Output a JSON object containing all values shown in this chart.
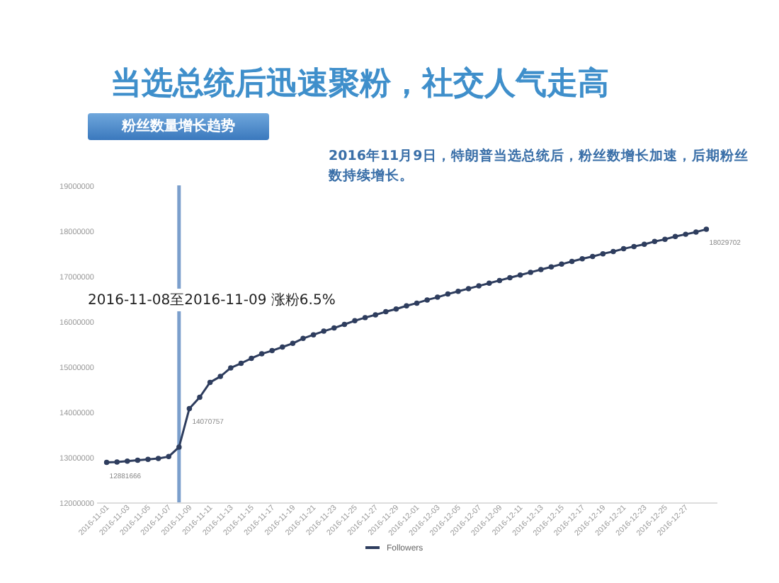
{
  "chart_data": {
    "type": "line",
    "title": "当选总统后迅速聚粉，社交人气走高",
    "subtitle": "粉丝数量增长趋势",
    "annotations": [
      "2016-11-08至2016-11-09 涨粉6.5%",
      "2016年11月9日，特朗普当选总统后，粉丝数增长加速，后期粉丝数持续增长。"
    ],
    "x": [
      "2016-11-01",
      "2016-11-02",
      "2016-11-03",
      "2016-11-04",
      "2016-11-05",
      "2016-11-06",
      "2016-11-07",
      "2016-11-08",
      "2016-11-09",
      "2016-11-10",
      "2016-11-11",
      "2016-11-12",
      "2016-11-13",
      "2016-11-14",
      "2016-11-15",
      "2016-11-16",
      "2016-11-17",
      "2016-11-18",
      "2016-11-19",
      "2016-11-20",
      "2016-11-21",
      "2016-11-22",
      "2016-11-23",
      "2016-11-24",
      "2016-11-25",
      "2016-11-26",
      "2016-11-27",
      "2016-11-28",
      "2016-11-29",
      "2016-11-30",
      "2016-12-01",
      "2016-12-02",
      "2016-12-03",
      "2016-12-04",
      "2016-12-05",
      "2016-12-06",
      "2016-12-07",
      "2016-12-08",
      "2016-12-09",
      "2016-12-10",
      "2016-12-11",
      "2016-12-12",
      "2016-12-13",
      "2016-12-14",
      "2016-12-15",
      "2016-12-16",
      "2016-12-17",
      "2016-12-18",
      "2016-12-19",
      "2016-12-20",
      "2016-12-21",
      "2016-12-22",
      "2016-12-23",
      "2016-12-24",
      "2016-12-25",
      "2016-12-26",
      "2016-12-27",
      "2016-12-28",
      "2016-12-29"
    ],
    "series": [
      {
        "name": "Followers",
        "color": "#2e3d5e",
        "values": [
          12881666,
          12890000,
          12910000,
          12930000,
          12950000,
          12970000,
          13010000,
          13220000,
          14070757,
          14320000,
          14650000,
          14780000,
          14970000,
          15070000,
          15180000,
          15280000,
          15350000,
          15430000,
          15510000,
          15620000,
          15700000,
          15780000,
          15850000,
          15930000,
          16010000,
          16080000,
          16140000,
          16210000,
          16270000,
          16340000,
          16400000,
          16470000,
          16530000,
          16600000,
          16660000,
          16720000,
          16780000,
          16840000,
          16900000,
          16960000,
          17020000,
          17080000,
          17140000,
          17200000,
          17260000,
          17320000,
          17380000,
          17430000,
          17490000,
          17540000,
          17600000,
          17650000,
          17700000,
          17760000,
          17810000,
          17870000,
          17920000,
          17970000,
          18029702
        ],
        "value_labels": [
          "12881666",
          null,
          null,
          null,
          null,
          null,
          null,
          null,
          "14070757",
          null,
          null,
          null,
          null,
          null,
          null,
          null,
          null,
          null,
          null,
          null,
          null,
          null,
          null,
          null,
          null,
          null,
          null,
          null,
          null,
          null,
          null,
          null,
          null,
          null,
          null,
          null,
          null,
          null,
          null,
          null,
          null,
          null,
          null,
          null,
          null,
          null,
          null,
          null,
          null,
          null,
          null,
          null,
          null,
          null,
          null,
          null,
          null,
          null,
          "18029702"
        ]
      }
    ],
    "xlim": [
      "2016-10-31",
      "2016-12-30"
    ],
    "xticks": [
      "2016-11-01",
      "2016-11-03",
      "2016-11-05",
      "2016-11-07",
      "2016-11-09",
      "2016-11-11",
      "2016-11-13",
      "2016-11-15",
      "2016-11-17",
      "2016-11-19",
      "2016-11-21",
      "2016-11-23",
      "2016-11-25",
      "2016-11-27",
      "2016-11-29",
      "2016-12-01",
      "2016-12-03",
      "2016-12-05",
      "2016-12-07",
      "2016-12-09",
      "2016-12-11",
      "2016-12-13",
      "2016-12-15",
      "2016-12-17",
      "2016-12-19",
      "2016-12-21",
      "2016-12-23",
      "2016-12-25",
      "2016-12-27"
    ],
    "ylim": [
      12000000,
      19000000
    ],
    "yticks": [
      12000000,
      13000000,
      14000000,
      15000000,
      16000000,
      17000000,
      18000000,
      19000000
    ],
    "ref_lines": [
      {
        "axis": "x",
        "value": "2016-11-08",
        "color": "#7b9fcc"
      }
    ],
    "legend": "bottom",
    "marker": "circle",
    "grid": false
  }
}
